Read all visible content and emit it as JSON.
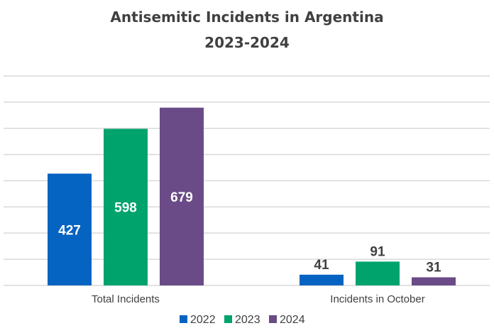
{
  "chart_data": {
    "type": "bar",
    "title_lines": [
      "Antisemitic Incidents in Argentina",
      "2023-2024"
    ],
    "categories": [
      "Total Incidents",
      "Incidents in October"
    ],
    "series": [
      {
        "name": "2022",
        "color": "#0563C1",
        "values": [
          427,
          41
        ]
      },
      {
        "name": "2023",
        "color": "#00A36C",
        "values": [
          598,
          91
        ]
      },
      {
        "name": "2024",
        "color": "#6A4B87",
        "values": [
          679,
          31
        ]
      }
    ],
    "ylim": [
      0,
      800
    ],
    "ytick_step": 100,
    "grid": true,
    "legend": "bottom",
    "xlabel": "",
    "ylabel": ""
  }
}
